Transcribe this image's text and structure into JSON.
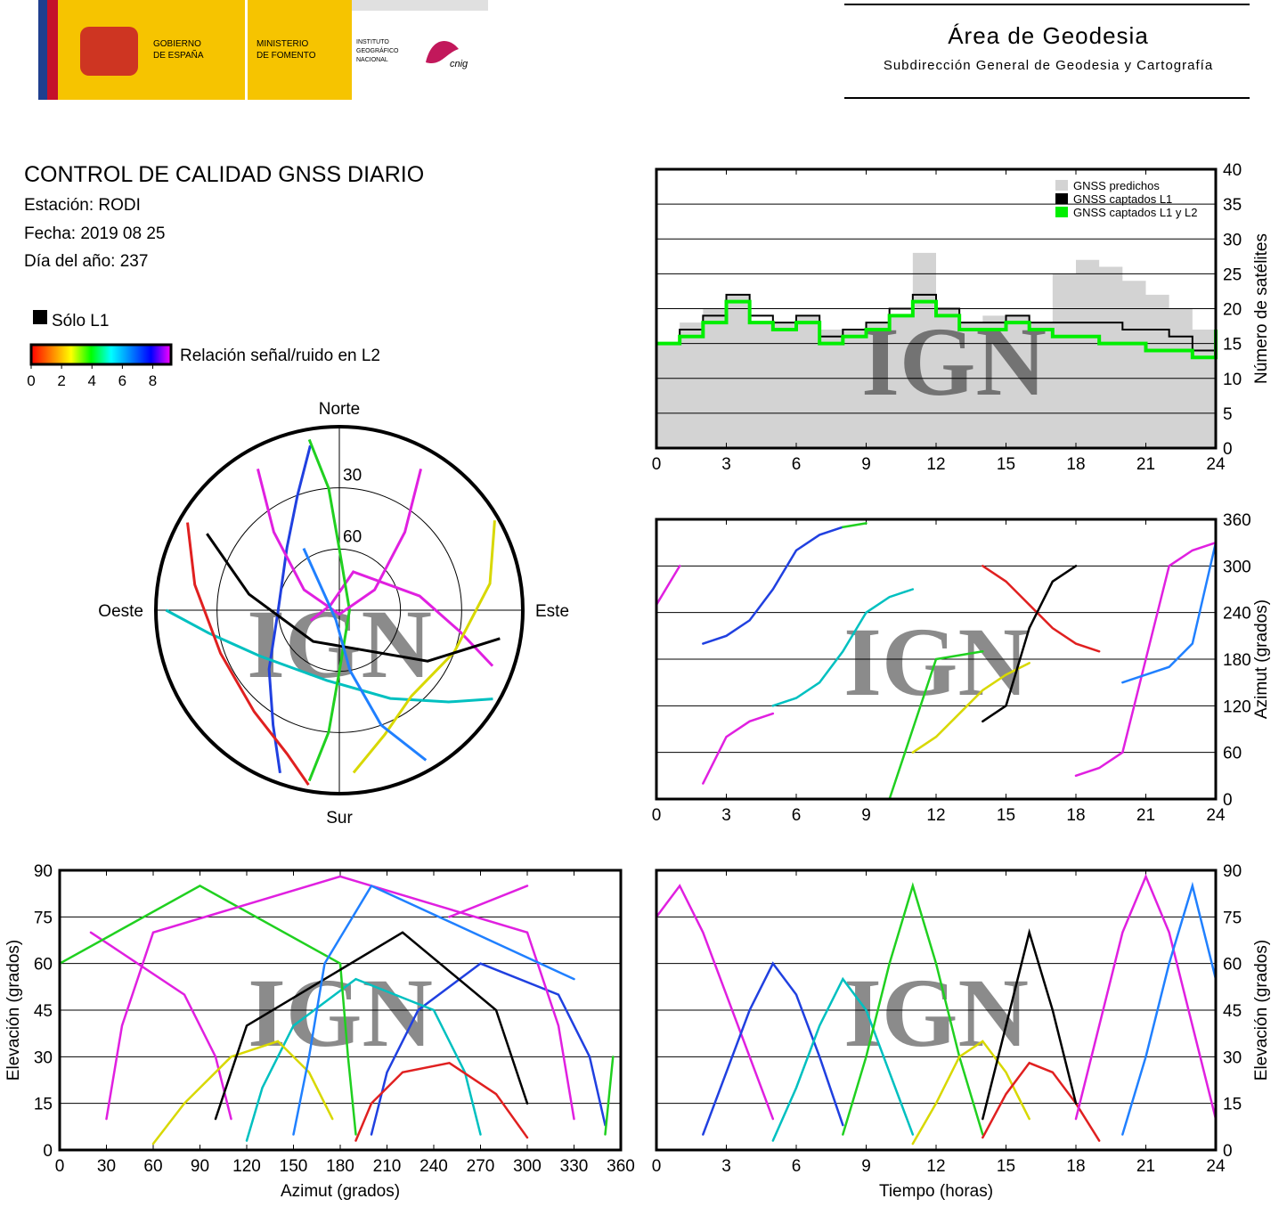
{
  "header": {
    "gobierno": [
      "GOBIERNO",
      "DE ESPAÑA"
    ],
    "ministerio": [
      "MINISTERIO",
      "DE FOMENTO"
    ],
    "instituto": [
      "INSTITUTO",
      "GEOGRÁFICO",
      "NACIONAL"
    ],
    "cnig": "cnig",
    "area": "Área de Geodesia",
    "subdireccion": "Subdirección General de Geodesia y Cartografía"
  },
  "report": {
    "title": "CONTROL DE CALIDAD GNSS DIARIO",
    "station": "Estación: RODI",
    "date": "Fecha: 2019 08 25",
    "doy": "Día del año: 237"
  },
  "legend": {
    "l1_only": "Sólo L1",
    "snr_label": "Relación señal/ruido en L2",
    "snr_ticks": [
      0,
      2,
      4,
      6,
      8
    ],
    "snr_lim": [
      0,
      9.2
    ],
    "snr_colors": [
      "#ff0000",
      "#ff8000",
      "#ffff00",
      "#00ff00",
      "#00ffff",
      "#0080ff",
      "#0000ff",
      "#ff00ff"
    ]
  },
  "watermark": "IGN",
  "satellites": [
    {
      "color": "#e020e0",
      "t": [
        0,
        1,
        2,
        3,
        4,
        5
      ],
      "az": [
        250,
        300,
        20,
        80,
        100,
        110
      ],
      "el": [
        75,
        85,
        70,
        50,
        30,
        10
      ]
    },
    {
      "color": "#2040e0",
      "t": [
        2,
        3,
        4,
        5,
        6,
        7,
        8
      ],
      "az": [
        200,
        210,
        230,
        270,
        320,
        340,
        350
      ],
      "el": [
        5,
        25,
        45,
        60,
        50,
        30,
        8
      ]
    },
    {
      "color": "#00c0c0",
      "t": [
        5,
        6,
        7,
        8,
        9,
        10,
        11
      ],
      "az": [
        120,
        130,
        150,
        190,
        240,
        260,
        270
      ],
      "el": [
        3,
        20,
        40,
        55,
        45,
        25,
        5
      ]
    },
    {
      "color": "#20d020",
      "t": [
        8,
        9,
        10,
        11,
        12,
        13,
        14
      ],
      "az": [
        350,
        355,
        0,
        90,
        180,
        185,
        190
      ],
      "el": [
        5,
        30,
        60,
        85,
        60,
        30,
        5
      ]
    },
    {
      "color": "#d8d800",
      "t": [
        11,
        12,
        13,
        14,
        15,
        16
      ],
      "az": [
        60,
        80,
        110,
        140,
        160,
        175
      ],
      "el": [
        2,
        15,
        30,
        35,
        25,
        10
      ]
    },
    {
      "color": "#e02020",
      "t": [
        14,
        15,
        16,
        17,
        18,
        19
      ],
      "az": [
        300,
        280,
        250,
        220,
        200,
        190
      ],
      "el": [
        4,
        18,
        28,
        25,
        15,
        3
      ]
    },
    {
      "color": "#000000",
      "t": [
        14,
        15,
        16,
        17,
        18
      ],
      "az": [
        100,
        120,
        220,
        280,
        300
      ],
      "el": [
        10,
        40,
        70,
        45,
        15
      ]
    },
    {
      "color": "#e020e0",
      "t": [
        18,
        19,
        20,
        21,
        22,
        23,
        24
      ],
      "az": [
        30,
        40,
        60,
        180,
        300,
        320,
        330
      ],
      "el": [
        10,
        40,
        70,
        88,
        70,
        40,
        10
      ]
    },
    {
      "color": "#2080ff",
      "t": [
        20,
        21,
        22,
        23,
        24
      ],
      "az": [
        150,
        160,
        170,
        200,
        330
      ],
      "el": [
        5,
        30,
        60,
        85,
        55
      ]
    }
  ],
  "chart_data": [
    {
      "type": "step",
      "x": [
        0,
        1,
        2,
        3,
        4,
        5,
        6,
        7,
        8,
        9,
        10,
        11,
        12,
        13,
        14,
        15,
        16,
        17,
        18,
        19,
        20,
        21,
        22,
        23,
        24
      ],
      "xlim": [
        0,
        24
      ],
      "xticks": [
        0,
        3,
        6,
        9,
        12,
        15,
        18,
        21,
        24
      ],
      "ylim": [
        0,
        40
      ],
      "yticks": [
        0,
        5,
        10,
        15,
        20,
        25,
        30,
        35,
        40
      ],
      "ylabel": "Número de satélites",
      "grid": true,
      "legend": "upper right",
      "series": [
        {
          "name": "GNSS predichos",
          "color": "#d3d3d3",
          "style": "area",
          "values": [
            15,
            18,
            20,
            22,
            18,
            18,
            19,
            17,
            17,
            18,
            19,
            28,
            20,
            18,
            19,
            19,
            18,
            25,
            27,
            26,
            24,
            22,
            20,
            17,
            18
          ]
        },
        {
          "name": "GNSS captados L1",
          "color": "#000000",
          "style": "line",
          "values": [
            15,
            17,
            19,
            22,
            19,
            18,
            19,
            16,
            17,
            18,
            20,
            22,
            20,
            18,
            18,
            19,
            18,
            18,
            18,
            18,
            17,
            17,
            16,
            14,
            18
          ]
        },
        {
          "name": "GNSS captados L1 y L2",
          "color": "#00ee00",
          "style": "line",
          "values": [
            15,
            16,
            18,
            21,
            18,
            17,
            18,
            15,
            16,
            17,
            19,
            21,
            19,
            17,
            17,
            18,
            17,
            16,
            16,
            15,
            15,
            14,
            14,
            13,
            17
          ]
        }
      ]
    },
    {
      "type": "polar",
      "directions": {
        "north": "Norte",
        "south": "Sur",
        "east": "Este",
        "west": "Oeste"
      },
      "rings": [
        30,
        60
      ],
      "rlim": [
        90,
        0
      ]
    },
    {
      "type": "track",
      "x_field": "t",
      "y_field": "az",
      "xlim": [
        0,
        24
      ],
      "xticks": [
        0,
        3,
        6,
        9,
        12,
        15,
        18,
        21,
        24
      ],
      "ylim": [
        0,
        360
      ],
      "yticks": [
        0,
        60,
        120,
        180,
        240,
        300,
        360
      ],
      "ylabel": "Azimut (grados)",
      "yaxis": "right"
    },
    {
      "type": "track",
      "x_field": "az",
      "y_field": "el",
      "xlim": [
        0,
        360
      ],
      "xticks": [
        0,
        30,
        60,
        90,
        120,
        150,
        180,
        210,
        240,
        270,
        300,
        330,
        360
      ],
      "ylim": [
        0,
        90
      ],
      "yticks": [
        0,
        15,
        30,
        45,
        60,
        75,
        90
      ],
      "xlabel": "Azimut (grados)",
      "ylabel": "Elevación (grados)",
      "yaxis": "left"
    },
    {
      "type": "track",
      "x_field": "t",
      "y_field": "el",
      "xlim": [
        0,
        24
      ],
      "xticks": [
        0,
        3,
        6,
        9,
        12,
        15,
        18,
        21,
        24
      ],
      "ylim": [
        0,
        90
      ],
      "yticks": [
        0,
        15,
        30,
        45,
        60,
        75,
        90
      ],
      "xlabel": "Tiempo (horas)",
      "ylabel": "Elevación (grados)",
      "yaxis": "right"
    }
  ]
}
